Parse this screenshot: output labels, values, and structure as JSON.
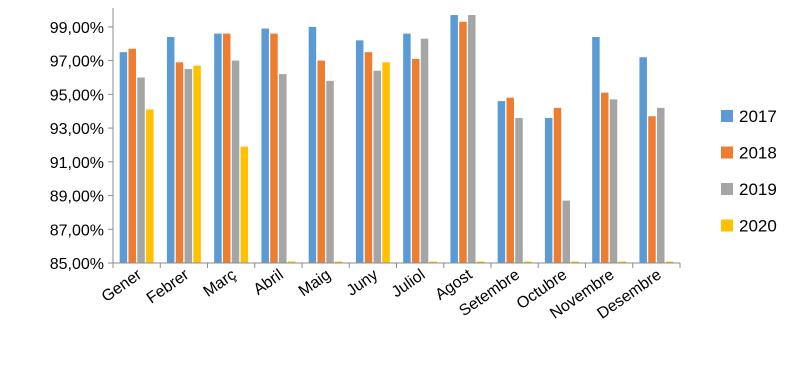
{
  "chart_data": {
    "type": "bar",
    "title": "",
    "xlabel": "",
    "ylabel": "",
    "ylim": [
      85,
      100
    ],
    "yticks": [
      85,
      87,
      89,
      91,
      93,
      95,
      97,
      99
    ],
    "ytick_labels": [
      "85,00%",
      "87,00%",
      "89,00%",
      "91,00%",
      "93,00%",
      "95,00%",
      "97,00%",
      "99,00%"
    ],
    "grid": false,
    "legend_position": "right",
    "categories": [
      "Gener",
      "Febrer",
      "Març",
      "Abril",
      "Maig",
      "Juny",
      "Juliol",
      "Agost",
      "Setembre",
      "Octubre",
      "Novembre",
      "Desembre"
    ],
    "series": [
      {
        "name": "2017",
        "color": "#5B9BD5",
        "values": [
          97.5,
          98.4,
          98.6,
          98.9,
          99.0,
          98.2,
          98.6,
          99.7,
          94.6,
          93.6,
          98.4,
          97.2
        ]
      },
      {
        "name": "2018",
        "color": "#ED7D31",
        "values": [
          97.7,
          96.9,
          98.6,
          98.6,
          97.0,
          97.5,
          97.1,
          99.3,
          94.8,
          94.2,
          95.1,
          93.7
        ]
      },
      {
        "name": "2019",
        "color": "#A5A5A5",
        "values": [
          96.0,
          96.5,
          97.0,
          96.2,
          95.8,
          96.4,
          98.3,
          99.7,
          93.6,
          88.7,
          94.7,
          94.2
        ]
      },
      {
        "name": "2020",
        "color": "#FFC000",
        "values": [
          94.1,
          96.7,
          91.9,
          85.0,
          85.0,
          96.9,
          85.0,
          85.0,
          85.0,
          85.0,
          85.0,
          85.0
        ]
      }
    ]
  }
}
